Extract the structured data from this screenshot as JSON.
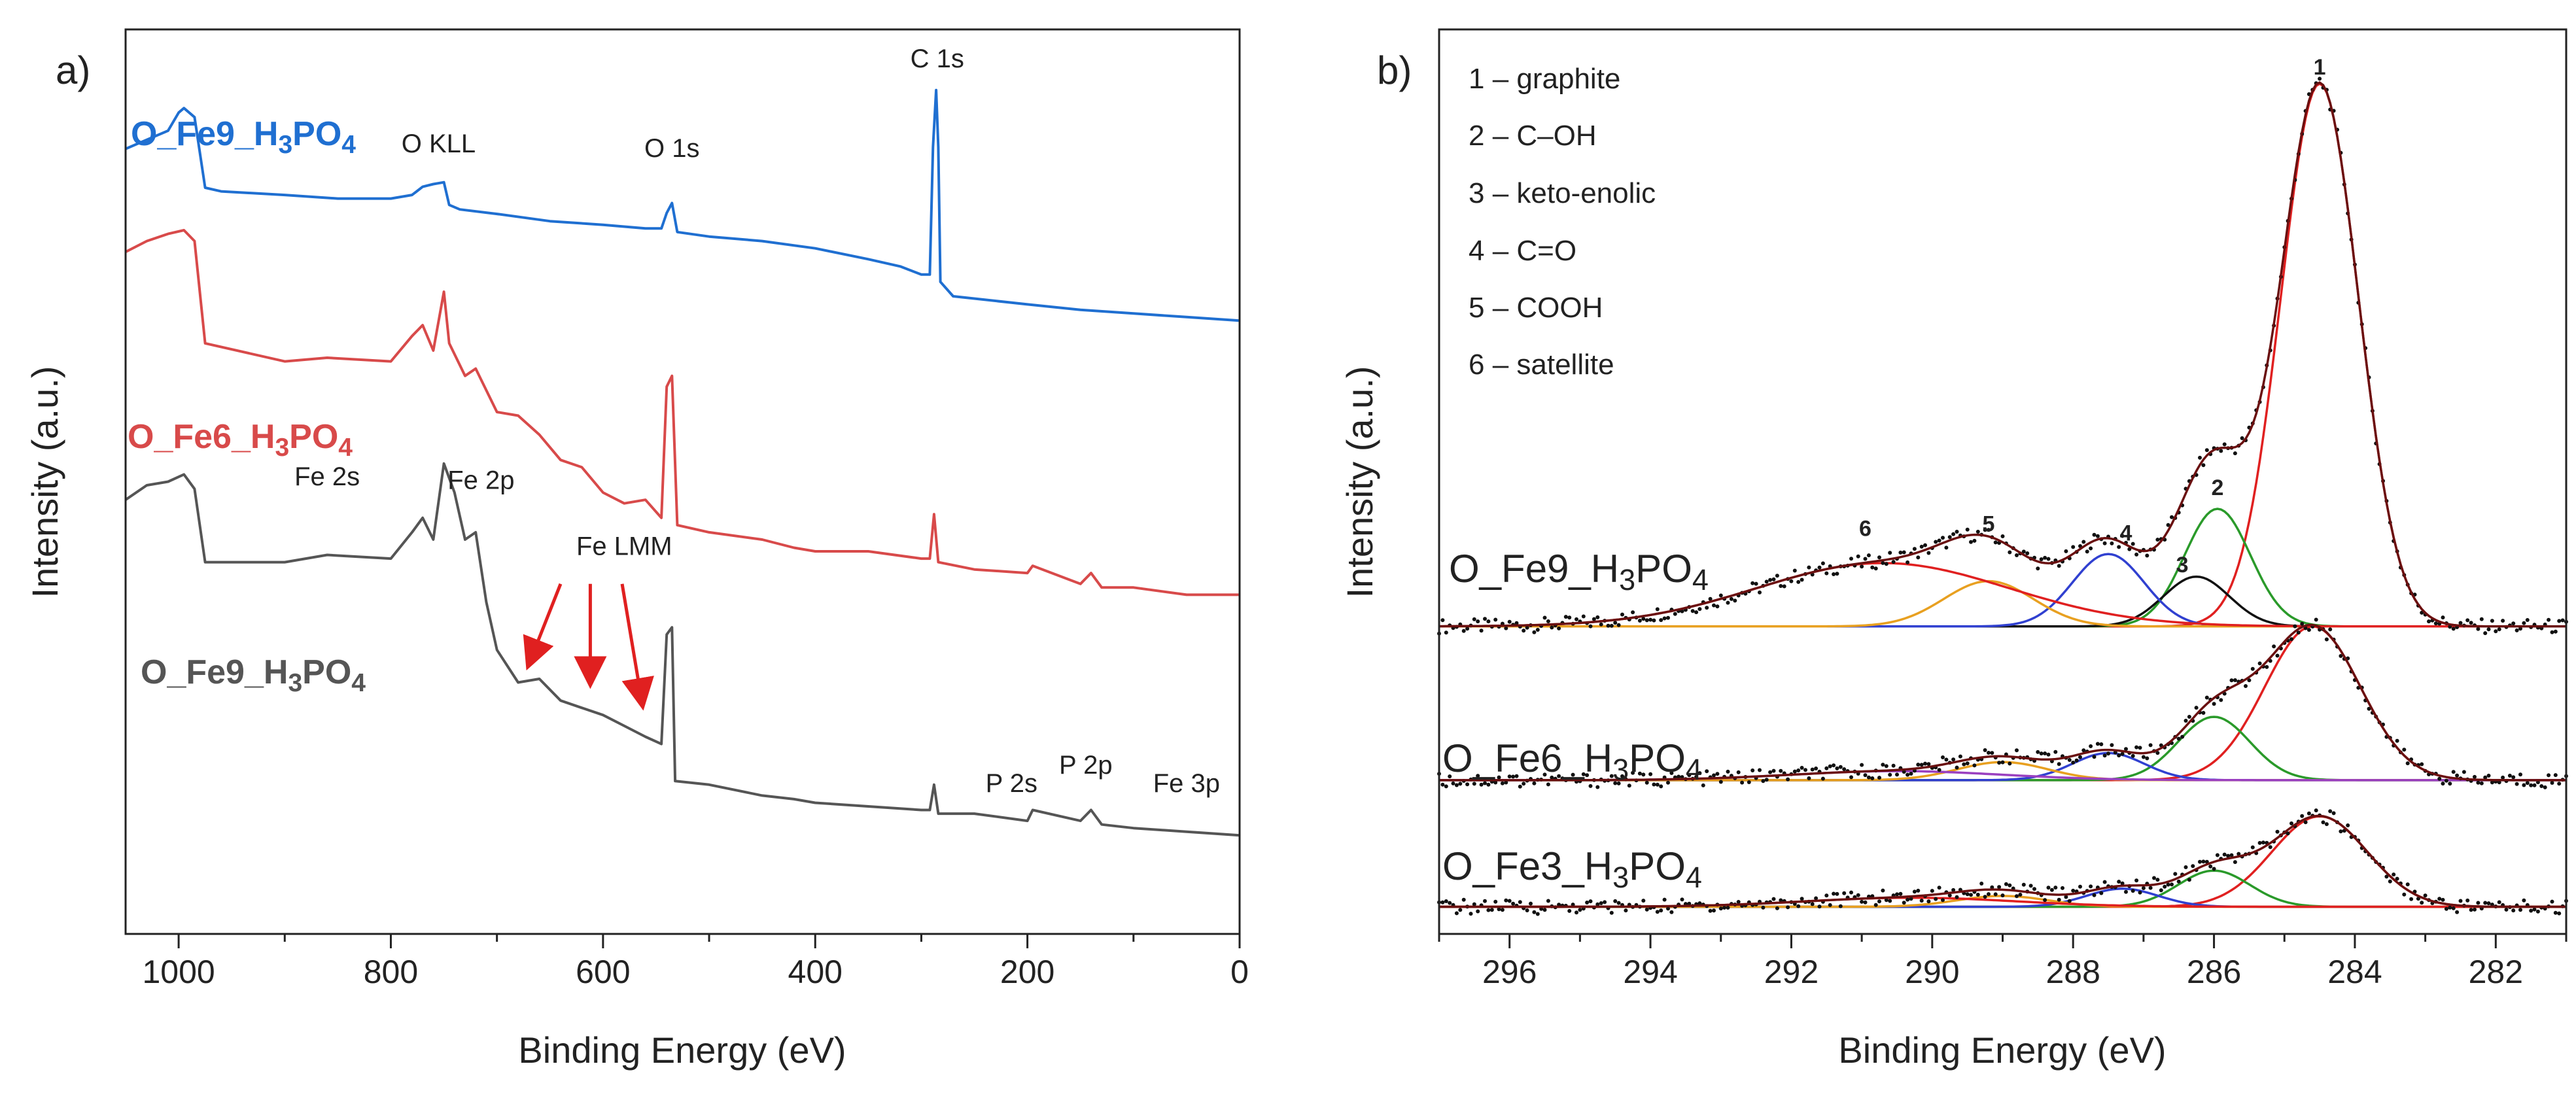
{
  "figure": {
    "panels": [
      {
        "id": "a",
        "label": "a)"
      },
      {
        "id": "b",
        "label": "b)"
      }
    ]
  },
  "chart_data": [
    {
      "type": "line",
      "panel": "a)",
      "title": "",
      "xlabel": "Binding Energy (eV)",
      "ylabel": "Intensity (a.u.)",
      "xlim": [
        1050,
        0
      ],
      "ylim": [
        0,
        100
      ],
      "x_ticks": [
        1000,
        800,
        600,
        400,
        200,
        0
      ],
      "x_tick_labels": [
        "1000",
        "800",
        "600",
        "400",
        "200",
        "0"
      ],
      "series": [
        {
          "name": "O_Fe9_H3PO4",
          "label_base": "O_Fe9_H",
          "label_sub1": "3",
          "label_mid": "PO",
          "label_sub2": "4",
          "color": "#1f6fd1",
          "points": [
            [
              1050,
              86.8
            ],
            [
              1030,
              87.8
            ],
            [
              1010,
              88.8
            ],
            [
              1000,
              90.8
            ],
            [
              995,
              91.3
            ],
            [
              985,
              90.3
            ],
            [
              975,
              82.5
            ],
            [
              960,
              82.1
            ],
            [
              900,
              81.7
            ],
            [
              850,
              81.3
            ],
            [
              800,
              81.3
            ],
            [
              780,
              81.7
            ],
            [
              770,
              82.6
            ],
            [
              760,
              82.9
            ],
            [
              750,
              83.1
            ],
            [
              745,
              80.6
            ],
            [
              735,
              80.1
            ],
            [
              700,
              79.6
            ],
            [
              650,
              78.8
            ],
            [
              600,
              78.4
            ],
            [
              560,
              78.0
            ],
            [
              545,
              78.0
            ],
            [
              540,
              79.7
            ],
            [
              535,
              80.8
            ],
            [
              530,
              77.6
            ],
            [
              500,
              77.1
            ],
            [
              450,
              76.6
            ],
            [
              400,
              75.8
            ],
            [
              350,
              74.6
            ],
            [
              320,
              73.8
            ],
            [
              300,
              72.9
            ],
            [
              292,
              72.9
            ],
            [
              289,
              87.0
            ],
            [
              286,
              93.3
            ],
            [
              284,
              87.0
            ],
            [
              282,
              72.1
            ],
            [
              270,
              70.5
            ],
            [
              200,
              69.6
            ],
            [
              150,
              69.0
            ],
            [
              100,
              68.6
            ],
            [
              50,
              68.2
            ],
            [
              0,
              67.8
            ]
          ]
        },
        {
          "name": "O_Fe6_H3PO4",
          "label_base": "O_Fe6_H",
          "label_sub1": "3",
          "label_mid": "PO",
          "label_sub2": "4",
          "color": "#d84a4a",
          "points": [
            [
              1050,
              75.4
            ],
            [
              1030,
              76.6
            ],
            [
              1010,
              77.4
            ],
            [
              995,
              77.8
            ],
            [
              985,
              76.6
            ],
            [
              975,
              65.3
            ],
            [
              900,
              63.3
            ],
            [
              860,
              63.7
            ],
            [
              800,
              63.3
            ],
            [
              780,
              66.1
            ],
            [
              770,
              67.3
            ],
            [
              760,
              64.5
            ],
            [
              750,
              71.0
            ],
            [
              745,
              65.3
            ],
            [
              730,
              61.7
            ],
            [
              720,
              62.5
            ],
            [
              700,
              57.7
            ],
            [
              680,
              57.3
            ],
            [
              660,
              55.2
            ],
            [
              640,
              52.4
            ],
            [
              620,
              51.6
            ],
            [
              600,
              48.8
            ],
            [
              580,
              47.6
            ],
            [
              560,
              48.0
            ],
            [
              545,
              46.0
            ],
            [
              540,
              60.5
            ],
            [
              535,
              61.7
            ],
            [
              530,
              45.2
            ],
            [
              500,
              44.4
            ],
            [
              450,
              43.6
            ],
            [
              420,
              42.7
            ],
            [
              400,
              42.3
            ],
            [
              350,
              42.3
            ],
            [
              300,
              41.5
            ],
            [
              292,
              41.5
            ],
            [
              288,
              46.4
            ],
            [
              284,
              41.1
            ],
            [
              250,
              40.3
            ],
            [
              200,
              39.9
            ],
            [
              195,
              40.7
            ],
            [
              150,
              38.7
            ],
            [
              140,
              39.9
            ],
            [
              130,
              38.3
            ],
            [
              100,
              38.3
            ],
            [
              50,
              37.5
            ],
            [
              0,
              37.5
            ]
          ]
        },
        {
          "name": "O_Fe9_H3PO4",
          "label_base": "O_Fe9_H",
          "label_sub1": "3",
          "label_mid": "PO",
          "label_sub2": "4",
          "color": "#555555",
          "points": [
            [
              1050,
              48.0
            ],
            [
              1030,
              49.6
            ],
            [
              1010,
              50.0
            ],
            [
              995,
              50.8
            ],
            [
              985,
              49.2
            ],
            [
              975,
              41.1
            ],
            [
              900,
              41.1
            ],
            [
              860,
              41.9
            ],
            [
              800,
              41.5
            ],
            [
              780,
              44.4
            ],
            [
              770,
              46.0
            ],
            [
              760,
              43.6
            ],
            [
              750,
              52.0
            ],
            [
              740,
              48.8
            ],
            [
              730,
              43.6
            ],
            [
              720,
              44.4
            ],
            [
              710,
              36.7
            ],
            [
              700,
              31.4
            ],
            [
              680,
              27.8
            ],
            [
              660,
              28.2
            ],
            [
              640,
              25.8
            ],
            [
              620,
              25.0
            ],
            [
              600,
              24.2
            ],
            [
              580,
              23.0
            ],
            [
              560,
              21.8
            ],
            [
              545,
              21.0
            ],
            [
              540,
              33.1
            ],
            [
              535,
              33.9
            ],
            [
              532,
              16.9
            ],
            [
              500,
              16.5
            ],
            [
              450,
              15.3
            ],
            [
              420,
              14.9
            ],
            [
              400,
              14.5
            ],
            [
              350,
              14.1
            ],
            [
              300,
              13.7
            ],
            [
              292,
              13.7
            ],
            [
              288,
              16.5
            ],
            [
              284,
              13.3
            ],
            [
              250,
              13.3
            ],
            [
              200,
              12.5
            ],
            [
              195,
              13.7
            ],
            [
              150,
              12.5
            ],
            [
              140,
              13.7
            ],
            [
              130,
              12.1
            ],
            [
              100,
              11.7
            ],
            [
              50,
              11.3
            ],
            [
              0,
              10.9
            ]
          ]
        }
      ],
      "annotations": [
        {
          "text": "C 1s",
          "x": 285,
          "y": 95.8
        },
        {
          "text": "O KLL",
          "x": 755,
          "y": 86.4
        },
        {
          "text": "O 1s",
          "x": 535,
          "y": 85.9
        },
        {
          "text": "Fe 2s",
          "x": 860,
          "y": 49.6
        },
        {
          "text": "Fe 2p",
          "x": 715,
          "y": 49.2
        },
        {
          "text": "Fe LMM",
          "x": 580,
          "y": 41.9
        },
        {
          "text": "P 2s",
          "x": 215,
          "y": 15.7
        },
        {
          "text": "P 2p",
          "x": 145,
          "y": 17.7
        },
        {
          "text": "Fe 3p",
          "x": 50,
          "y": 15.7
        }
      ],
      "arrows": [
        {
          "color": "#e02020",
          "from": [
            640,
            38.7
          ],
          "to": [
            670,
            29.8
          ]
        },
        {
          "color": "#e02020",
          "from": [
            612,
            38.7
          ],
          "to": [
            612,
            27.8
          ]
        },
        {
          "color": "#e02020",
          "from": [
            582,
            38.7
          ],
          "to": [
            563,
            25.4
          ]
        }
      ]
    },
    {
      "type": "line",
      "panel": "b)",
      "title": "",
      "xlabel": "Binding Energy (eV)",
      "ylabel": "Intensity (a.u.)",
      "xlim": [
        297,
        281
      ],
      "ylim": [
        0,
        100
      ],
      "x_ticks": [
        296,
        294,
        292,
        290,
        288,
        286,
        284,
        282
      ],
      "x_tick_labels": [
        "296",
        "294",
        "292",
        "290",
        "288",
        "286",
        "284",
        "282"
      ],
      "legend": [
        {
          "num": "1",
          "label": "1 – graphite"
        },
        {
          "num": "2",
          "label": "2 – C–OH"
        },
        {
          "num": "3",
          "label": "3 – keto-enolic"
        },
        {
          "num": "4",
          "label": "4 – C=O"
        },
        {
          "num": "5",
          "label": "5 – COOH"
        },
        {
          "num": "6",
          "label": "6 – satellite"
        }
      ],
      "legend_position": "top-left",
      "samples": [
        {
          "name": "O_Fe9_H3PO4",
          "label_base": "O_Fe9_H",
          "label_sub1": "3",
          "label_mid": "PO",
          "label_sub2": "4",
          "baseline": 34.0,
          "components": [
            {
              "id": "1",
              "component": "graphite",
              "color": "#e02020",
              "center": 284.5,
              "height": 60.0,
              "fwhm": 1.3
            },
            {
              "id": "2",
              "component": "C–OH",
              "color": "#2a9a2a",
              "center": 285.95,
              "height": 13.0,
              "fwhm": 1.1
            },
            {
              "id": "3",
              "component": "keto-enolic",
              "color": "#111111",
              "center": 286.25,
              "height": 5.5,
              "fwhm": 1.1
            },
            {
              "id": "4",
              "component": "C=O",
              "color": "#3040d0",
              "center": 287.5,
              "height": 8.0,
              "fwhm": 1.2
            },
            {
              "id": "5",
              "component": "COOH",
              "color": "#e8a020",
              "center": 289.2,
              "height": 5.0,
              "fwhm": 1.5
            },
            {
              "id": "6",
              "component": "satellite",
              "color": "#e02020",
              "center": 290.7,
              "height": 7.0,
              "fwhm": 4.2
            }
          ],
          "envelope_color": "#6a1010"
        },
        {
          "name": "O_Fe6_H3PO4",
          "label_base": "O_Fe6_H",
          "label_sub1": "3",
          "label_mid": "PO",
          "label_sub2": "4",
          "baseline": 17.0,
          "components": [
            {
              "id": "1",
              "component": "graphite",
              "color": "#e02020",
              "center": 284.6,
              "height": 17.0,
              "fwhm": 1.6
            },
            {
              "id": "2",
              "component": "C–OH",
              "color": "#2a9a2a",
              "center": 286.0,
              "height": 7.0,
              "fwhm": 1.2
            },
            {
              "id": "4",
              "component": "C=O",
              "color": "#3040d0",
              "center": 287.5,
              "height": 3.0,
              "fwhm": 1.2
            },
            {
              "id": "5",
              "component": "COOH",
              "color": "#e8a020",
              "center": 289.0,
              "height": 2.0,
              "fwhm": 1.5
            },
            {
              "id": "6",
              "component": "satellite",
              "color": "#9a40c0",
              "center": 290.5,
              "height": 1.0,
              "fwhm": 3.5
            }
          ],
          "envelope_color": "#6a1010"
        },
        {
          "name": "O_Fe3_H3PO4",
          "label_base": "O_Fe3_H",
          "label_sub1": "3",
          "label_mid": "PO",
          "label_sub2": "4",
          "baseline": 3.0,
          "components": [
            {
              "id": "1",
              "component": "graphite",
              "color": "#e02020",
              "center": 284.5,
              "height": 10.0,
              "fwhm": 1.6
            },
            {
              "id": "2",
              "component": "C–OH",
              "color": "#2a9a2a",
              "center": 286.0,
              "height": 4.0,
              "fwhm": 1.2
            },
            {
              "id": "4",
              "component": "C=O",
              "color": "#3040d0",
              "center": 287.3,
              "height": 2.0,
              "fwhm": 1.2
            },
            {
              "id": "5",
              "component": "COOH",
              "color": "#e8a020",
              "center": 289.0,
              "height": 1.2,
              "fwhm": 1.5
            },
            {
              "id": "6",
              "component": "satellite",
              "color": "#e02020",
              "center": 290.3,
              "height": 1.0,
              "fwhm": 3.5
            }
          ],
          "envelope_color": "#6a1010"
        }
      ],
      "peak_number_labels": [
        {
          "text": "1",
          "x": 284.5,
          "y": 95.0
        },
        {
          "text": "2",
          "x": 285.95,
          "y": 48.5
        },
        {
          "text": "3",
          "x": 286.45,
          "y": 40.0
        },
        {
          "text": "4",
          "x": 287.25,
          "y": 43.5
        },
        {
          "text": "5",
          "x": 289.2,
          "y": 44.5
        },
        {
          "text": "6",
          "x": 290.95,
          "y": 44.0
        }
      ]
    }
  ]
}
